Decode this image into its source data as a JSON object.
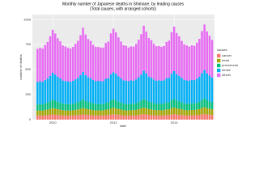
{
  "chart_data": {
    "type": "stacked-bar",
    "title": "Monthly number of Japanese deaths in Shimane, by leading causes",
    "subtitle": "(Total causes, with arranged cohorts)",
    "x_label": "date",
    "y_label": "number of deaths",
    "legend_title": "causes",
    "grid": true,
    "xlim": [
      2009.33,
      2015.33
    ],
    "xticks": [
      2010,
      2012,
      2014
    ],
    "ylim": [
      0,
      1050
    ],
    "yticks": [
      0,
      250,
      500,
      750,
      1000
    ],
    "x": [
      2009.5,
      2009.583,
      2009.667,
      2009.75,
      2009.833,
      2009.917,
      2010,
      2010.083,
      2010.167,
      2010.25,
      2010.333,
      2010.417,
      2010.5,
      2010.583,
      2010.667,
      2010.75,
      2010.833,
      2010.917,
      2011,
      2011.083,
      2011.167,
      2011.25,
      2011.333,
      2011.417,
      2011.5,
      2011.583,
      2011.667,
      2011.75,
      2011.833,
      2011.917,
      2012,
      2012.083,
      2012.167,
      2012.25,
      2012.333,
      2012.417,
      2012.5,
      2012.583,
      2012.667,
      2012.75,
      2012.833,
      2012.917,
      2013,
      2013.083,
      2013.167,
      2013.25,
      2013.333,
      2013.417,
      2013.5,
      2013.583,
      2013.667,
      2013.75,
      2013.833,
      2013.917,
      2014,
      2014.083,
      2014.167,
      2014.25,
      2014.333,
      2014.417,
      2014.5,
      2014.583,
      2014.667,
      2014.75,
      2014.833,
      2014.917,
      2015,
      2015.083,
      2015.167,
      2015.25
    ],
    "series": [
      {
        "name": "cancer",
        "color": "#F8766D",
        "values": [
          40,
          41,
          40,
          43,
          44,
          48,
          52,
          50,
          47,
          45,
          42,
          41,
          41,
          40,
          42,
          44,
          46,
          49,
          53,
          49,
          48,
          44,
          43,
          42,
          42,
          41,
          41,
          45,
          45,
          50,
          54,
          51,
          47,
          46,
          43,
          41,
          41,
          42,
          43,
          44,
          47,
          51,
          55,
          52,
          49,
          45,
          44,
          43,
          43,
          42,
          42,
          46,
          46,
          52,
          56,
          51,
          48,
          47,
          44,
          42,
          42,
          43,
          44,
          45,
          48,
          53,
          57,
          52,
          50,
          46
        ]
      },
      {
        "name": "heart",
        "color": "#A3A500",
        "values": [
          50,
          51,
          50,
          53,
          56,
          60,
          64,
          61,
          58,
          55,
          52,
          51,
          51,
          50,
          52,
          54,
          57,
          61,
          66,
          60,
          57,
          56,
          53,
          50,
          52,
          51,
          51,
          55,
          56,
          62,
          65,
          62,
          59,
          55,
          52,
          52,
          51,
          53,
          52,
          54,
          58,
          61,
          67,
          63,
          58,
          57,
          54,
          51,
          53,
          52,
          53,
          56,
          57,
          63,
          66,
          62,
          60,
          56,
          53,
          52,
          52,
          54,
          53,
          55,
          59,
          64,
          68,
          63,
          60,
          57
        ]
      },
      {
        "name": "pneumonia",
        "color": "#00BF7D",
        "values": [
          62,
          63,
          62,
          66,
          69,
          75,
          82,
          78,
          73,
          69,
          65,
          64,
          63,
          62,
          64,
          67,
          70,
          76,
          84,
          77,
          72,
          70,
          66,
          63,
          64,
          63,
          63,
          68,
          69,
          78,
          83,
          79,
          74,
          69,
          65,
          65,
          63,
          65,
          64,
          67,
          71,
          77,
          86,
          80,
          73,
          71,
          67,
          64,
          65,
          64,
          65,
          69,
          70,
          79,
          85,
          78,
          75,
          70,
          66,
          65,
          64,
          66,
          65,
          68,
          72,
          80,
          87,
          79,
          75,
          71
        ]
      },
      {
        "name": "stroke",
        "color": "#00B0F6",
        "values": [
          225,
          228,
          226,
          235,
          242,
          255,
          270,
          262,
          250,
          243,
          232,
          230,
          228,
          226,
          230,
          238,
          245,
          258,
          275,
          260,
          248,
          245,
          234,
          229,
          230,
          229,
          228,
          240,
          244,
          262,
          272,
          265,
          252,
          242,
          233,
          232,
          229,
          232,
          231,
          238,
          248,
          260,
          280,
          266,
          250,
          246,
          236,
          231,
          233,
          231,
          234,
          242,
          246,
          265,
          278,
          263,
          255,
          244,
          235,
          233,
          232,
          235,
          233,
          241,
          250,
          268,
          284,
          267,
          256,
          247
        ]
      },
      {
        "name": "others",
        "color": "#E76BF3",
        "values": [
          330,
          335,
          332,
          350,
          365,
          395,
          430,
          410,
          385,
          370,
          350,
          345,
          335,
          332,
          338,
          355,
          370,
          400,
          440,
          405,
          380,
          372,
          352,
          342,
          338,
          336,
          335,
          358,
          366,
          410,
          435,
          415,
          390,
          368,
          350,
          348,
          336,
          340,
          339,
          354,
          375,
          405,
          450,
          418,
          386,
          375,
          356,
          344,
          342,
          338,
          342,
          362,
          370,
          415,
          445,
          412,
          395,
          370,
          354,
          350,
          340,
          345,
          343,
          360,
          378,
          420,
          455,
          420,
          398,
          376
        ]
      }
    ]
  }
}
